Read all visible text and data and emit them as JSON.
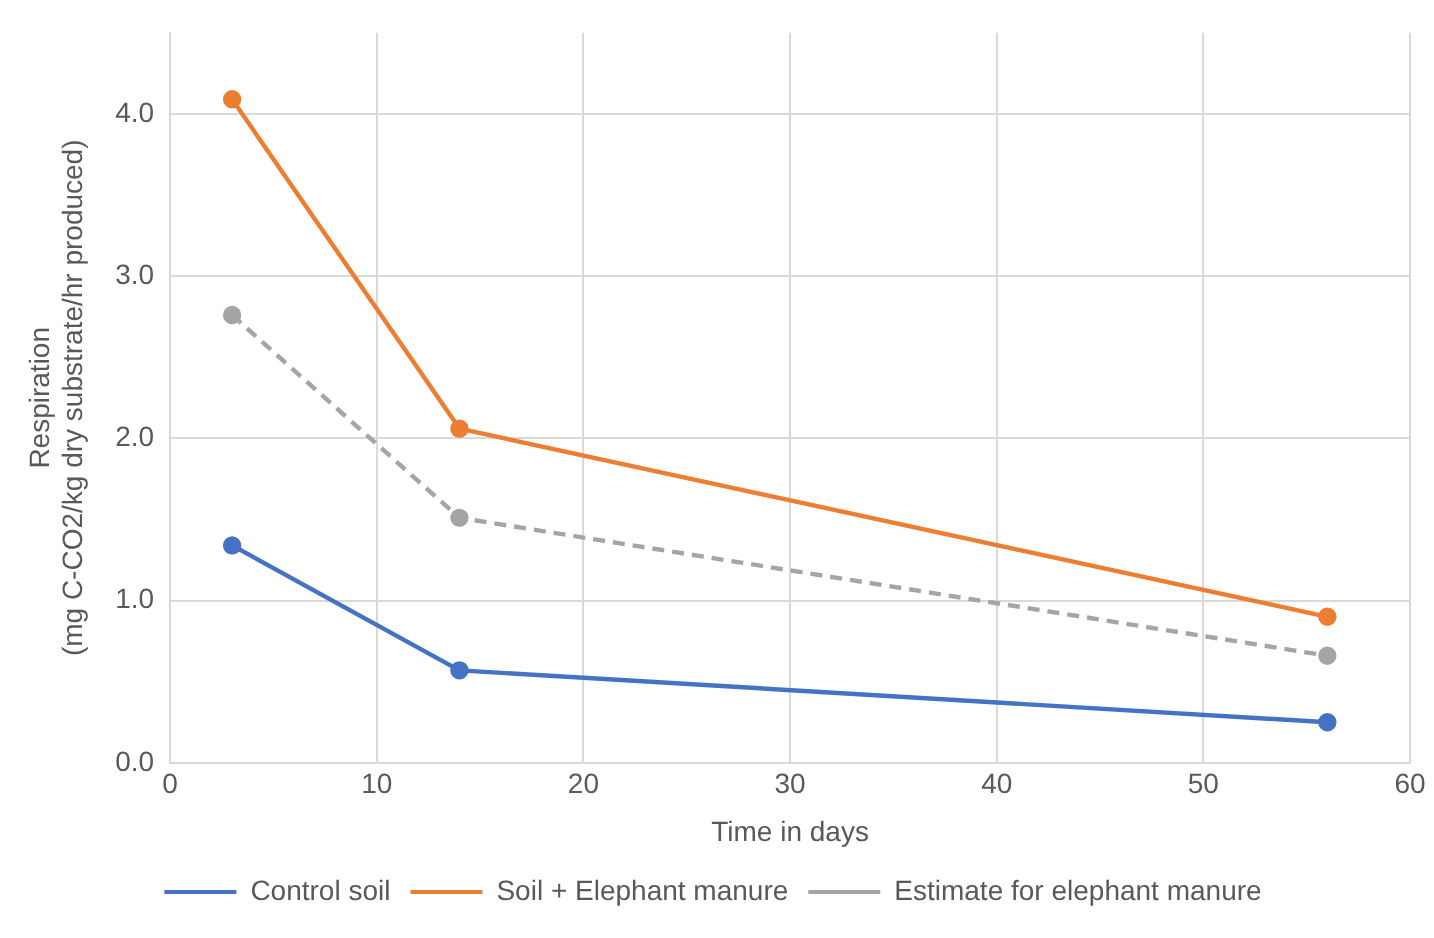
{
  "chart_data": {
    "type": "line",
    "xlabel": "Time in days",
    "ylabel": "Respiration\n(mg C-CO2/kg dry substrate/hr produced)",
    "x": [
      3,
      14,
      56
    ],
    "series": [
      {
        "name": "Control soil",
        "color": "#4472c4",
        "values": [
          1.34,
          0.57,
          0.25
        ]
      },
      {
        "name": "Soil + Elephant manure",
        "color": "#ed7d31",
        "values": [
          4.09,
          2.06,
          0.9
        ]
      },
      {
        "name": "Estimate for elephant manure",
        "color": "#a5a5a5",
        "values": [
          2.76,
          1.51,
          0.66
        ],
        "line_style": "dashed"
      }
    ],
    "xlim": [
      0,
      60
    ],
    "xticks": [
      0,
      10,
      20,
      30,
      40,
      50,
      60
    ],
    "ylim": [
      0,
      4.5
    ],
    "yticks": [
      {
        "value": 0,
        "label": "0.0"
      },
      {
        "value": 1,
        "label": "1.0"
      },
      {
        "value": 2,
        "label": "2.0"
      },
      {
        "value": 3,
        "label": "3.0"
      },
      {
        "value": 4,
        "label": "4.0"
      }
    ],
    "grid": true,
    "legend": "bottom",
    "marker": "circle"
  }
}
